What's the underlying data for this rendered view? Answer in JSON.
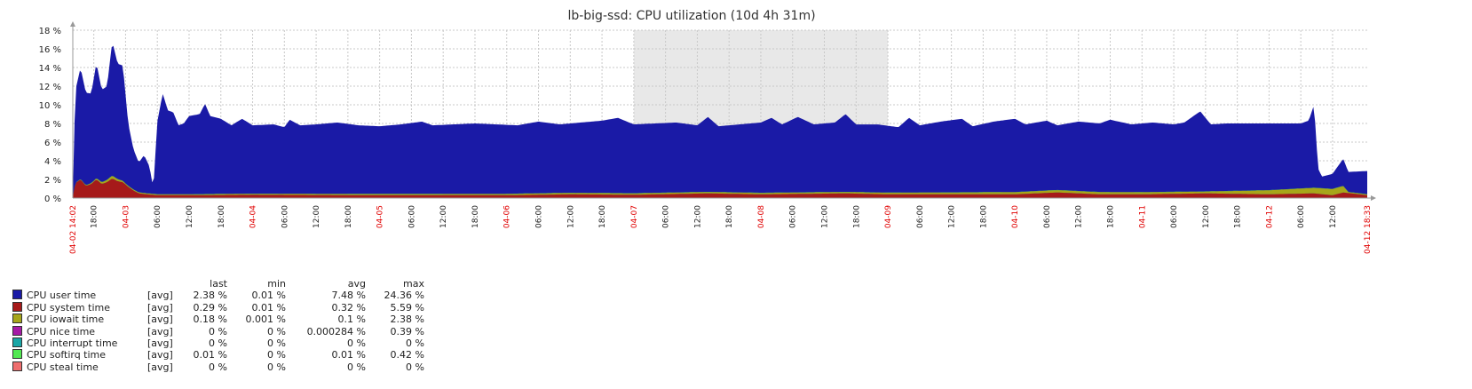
{
  "chart_data": {
    "type": "area",
    "title": "lb-big-ssd: CPU utilization (10d 4h 31m)",
    "ylim": [
      0,
      18
    ],
    "y_ticks": [
      "0 %",
      "2 %",
      "4 %",
      "6 %",
      "8 %",
      "10 %",
      "12 %",
      "14 %",
      "16 %",
      "18 %"
    ],
    "x_range": [
      "04-02 14:02",
      "04-12 18:33"
    ],
    "x_start_label": "04-02 14:02",
    "x_end_label": "04-12 18:33",
    "x_ticks": [
      {
        "t": "04-02 18:00",
        "label": "18:00",
        "day": false
      },
      {
        "t": "04-03 00:00",
        "label": "04-03",
        "day": true
      },
      {
        "t": "04-03 06:00",
        "label": "06:00",
        "day": false
      },
      {
        "t": "04-03 12:00",
        "label": "12:00",
        "day": false
      },
      {
        "t": "04-03 18:00",
        "label": "18:00",
        "day": false
      },
      {
        "t": "04-04 00:00",
        "label": "04-04",
        "day": true
      },
      {
        "t": "04-04 06:00",
        "label": "06:00",
        "day": false
      },
      {
        "t": "04-04 12:00",
        "label": "12:00",
        "day": false
      },
      {
        "t": "04-04 18:00",
        "label": "18:00",
        "day": false
      },
      {
        "t": "04-05 00:00",
        "label": "04-05",
        "day": true
      },
      {
        "t": "04-05 06:00",
        "label": "06:00",
        "day": false
      },
      {
        "t": "04-05 12:00",
        "label": "12:00",
        "day": false
      },
      {
        "t": "04-05 18:00",
        "label": "18:00",
        "day": false
      },
      {
        "t": "04-06 00:00",
        "label": "04-06",
        "day": true
      },
      {
        "t": "04-06 06:00",
        "label": "06:00",
        "day": false
      },
      {
        "t": "04-06 12:00",
        "label": "12:00",
        "day": false
      },
      {
        "t": "04-06 18:00",
        "label": "18:00",
        "day": false
      },
      {
        "t": "04-07 00:00",
        "label": "04-07",
        "day": true
      },
      {
        "t": "04-07 06:00",
        "label": "06:00",
        "day": false
      },
      {
        "t": "04-07 12:00",
        "label": "12:00",
        "day": false
      },
      {
        "t": "04-07 18:00",
        "label": "18:00",
        "day": false
      },
      {
        "t": "04-08 00:00",
        "label": "04-08",
        "day": true
      },
      {
        "t": "04-08 06:00",
        "label": "06:00",
        "day": false
      },
      {
        "t": "04-08 12:00",
        "label": "12:00",
        "day": false
      },
      {
        "t": "04-08 18:00",
        "label": "18:00",
        "day": false
      },
      {
        "t": "04-09 00:00",
        "label": "04-09",
        "day": true
      },
      {
        "t": "04-09 06:00",
        "label": "06:00",
        "day": false
      },
      {
        "t": "04-09 12:00",
        "label": "12:00",
        "day": false
      },
      {
        "t": "04-09 18:00",
        "label": "18:00",
        "day": false
      },
      {
        "t": "04-10 00:00",
        "label": "04-10",
        "day": true
      },
      {
        "t": "04-10 06:00",
        "label": "06:00",
        "day": false
      },
      {
        "t": "04-10 12:00",
        "label": "12:00",
        "day": false
      },
      {
        "t": "04-10 18:00",
        "label": "18:00",
        "day": false
      },
      {
        "t": "04-11 00:00",
        "label": "04-11",
        "day": true
      },
      {
        "t": "04-11 06:00",
        "label": "06:00",
        "day": false
      },
      {
        "t": "04-11 12:00",
        "label": "12:00",
        "day": false
      },
      {
        "t": "04-11 18:00",
        "label": "18:00",
        "day": false
      },
      {
        "t": "04-12 00:00",
        "label": "04-12",
        "day": true
      },
      {
        "t": "04-12 06:00",
        "label": "06:00",
        "day": false
      },
      {
        "t": "04-12 12:00",
        "label": "12:00",
        "day": false
      }
    ],
    "shaded_period": {
      "from": "04-07 00:00",
      "to": "04-09 00:00",
      "color": "#e8e8e8"
    },
    "series": [
      {
        "name": "CPU user time",
        "color": "#1a1aa6",
        "points": [
          [
            "04-02 14:02",
            0.2
          ],
          [
            "04-02 14:30",
            11.5
          ],
          [
            "04-02 15:30",
            14.0
          ],
          [
            "04-02 16:30",
            11.3
          ],
          [
            "04-02 17:30",
            11.2
          ],
          [
            "04-02 18:30",
            14.5
          ],
          [
            "04-02 19:30",
            11.6
          ],
          [
            "04-02 20:30",
            12.0
          ],
          [
            "04-02 21:30",
            16.8
          ],
          [
            "04-02 22:30",
            14.4
          ],
          [
            "04-02 23:30",
            14.2
          ],
          [
            "04-03 00:30",
            8.0
          ],
          [
            "04-03 01:30",
            5.2
          ],
          [
            "04-03 02:30",
            3.8
          ],
          [
            "04-03 03:30",
            4.6
          ],
          [
            "04-03 04:30",
            3.4
          ],
          [
            "04-03 05:15",
            1.0
          ],
          [
            "04-03 06:00",
            8.2
          ],
          [
            "04-03 07:00",
            11.2
          ],
          [
            "04-03 08:00",
            9.4
          ],
          [
            "04-03 09:00",
            9.2
          ],
          [
            "04-03 10:00",
            7.8
          ],
          [
            "04-03 11:00",
            8.0
          ],
          [
            "04-03 12:00",
            8.8
          ],
          [
            "04-03 14:00",
            9.0
          ],
          [
            "04-03 15:00",
            10.1
          ],
          [
            "04-03 16:00",
            8.8
          ],
          [
            "04-03 18:00",
            8.5
          ],
          [
            "04-03 20:00",
            7.8
          ],
          [
            "04-03 22:00",
            8.5
          ],
          [
            "04-04 00:00",
            7.8
          ],
          [
            "04-04 04:00",
            7.9
          ],
          [
            "04-04 06:00",
            7.6
          ],
          [
            "04-04 07:00",
            8.4
          ],
          [
            "04-04 09:00",
            7.8
          ],
          [
            "04-04 12:00",
            7.9
          ],
          [
            "04-04 16:00",
            8.1
          ],
          [
            "04-04 20:00",
            7.8
          ],
          [
            "04-05 00:00",
            7.7
          ],
          [
            "04-05 04:00",
            7.9
          ],
          [
            "04-05 08:00",
            8.2
          ],
          [
            "04-05 10:00",
            7.8
          ],
          [
            "04-05 14:00",
            7.9
          ],
          [
            "04-05 18:00",
            8.0
          ],
          [
            "04-05 22:00",
            7.9
          ],
          [
            "04-06 02:00",
            7.8
          ],
          [
            "04-06 06:00",
            8.2
          ],
          [
            "04-06 10:00",
            7.9
          ],
          [
            "04-06 14:00",
            8.1
          ],
          [
            "04-06 18:00",
            8.3
          ],
          [
            "04-06 21:00",
            8.6
          ],
          [
            "04-07 00:00",
            7.9
          ],
          [
            "04-07 04:00",
            8.0
          ],
          [
            "04-07 08:00",
            8.1
          ],
          [
            "04-07 12:00",
            7.8
          ],
          [
            "04-07 14:00",
            8.7
          ],
          [
            "04-07 16:00",
            7.7
          ],
          [
            "04-07 20:00",
            7.9
          ],
          [
            "04-08 00:00",
            8.1
          ],
          [
            "04-08 02:00",
            8.6
          ],
          [
            "04-08 04:00",
            7.9
          ],
          [
            "04-08 07:00",
            8.7
          ],
          [
            "04-08 10:00",
            7.9
          ],
          [
            "04-08 14:00",
            8.1
          ],
          [
            "04-08 16:00",
            9.0
          ],
          [
            "04-08 18:00",
            7.9
          ],
          [
            "04-08 22:00",
            7.9
          ],
          [
            "04-09 02:00",
            7.6
          ],
          [
            "04-09 04:00",
            8.6
          ],
          [
            "04-09 06:00",
            7.8
          ],
          [
            "04-09 10:00",
            8.2
          ],
          [
            "04-09 14:00",
            8.5
          ],
          [
            "04-09 16:00",
            7.7
          ],
          [
            "04-09 20:00",
            8.2
          ],
          [
            "04-10 00:00",
            8.5
          ],
          [
            "04-10 02:00",
            7.9
          ],
          [
            "04-10 06:00",
            8.3
          ],
          [
            "04-10 08:00",
            7.8
          ],
          [
            "04-10 12:00",
            8.2
          ],
          [
            "04-10 16:00",
            8.0
          ],
          [
            "04-10 18:00",
            8.4
          ],
          [
            "04-10 22:00",
            7.9
          ],
          [
            "04-11 02:00",
            8.1
          ],
          [
            "04-11 06:00",
            7.9
          ],
          [
            "04-11 08:00",
            8.1
          ],
          [
            "04-11 11:00",
            9.3
          ],
          [
            "04-11 13:00",
            7.9
          ],
          [
            "04-11 16:00",
            8.0
          ],
          [
            "04-11 20:00",
            8.0
          ],
          [
            "04-12 00:00",
            8.0
          ],
          [
            "04-12 04:00",
            8.0
          ],
          [
            "04-12 06:00",
            8.0
          ],
          [
            "04-12 07:30",
            8.3
          ],
          [
            "04-12 08:30",
            10.0
          ],
          [
            "04-12 09:15",
            3.2
          ],
          [
            "04-12 10:00",
            2.3
          ],
          [
            "04-12 12:00",
            2.6
          ],
          [
            "04-12 14:00",
            4.2
          ],
          [
            "04-12 15:00",
            2.8
          ],
          [
            "04-12 18:33",
            2.9
          ]
        ]
      },
      {
        "name": "CPU system time",
        "color": "#a61a1a",
        "points": [
          [
            "04-02 14:02",
            0.1
          ],
          [
            "04-02 14:30",
            1.6
          ],
          [
            "04-02 15:30",
            2.0
          ],
          [
            "04-02 16:30",
            1.3
          ],
          [
            "04-02 17:30",
            1.5
          ],
          [
            "04-02 18:30",
            2.0
          ],
          [
            "04-02 19:30",
            1.5
          ],
          [
            "04-02 20:30",
            1.7
          ],
          [
            "04-02 21:30",
            2.1
          ],
          [
            "04-02 22:30",
            1.8
          ],
          [
            "04-02 23:30",
            1.7
          ],
          [
            "04-03 00:30",
            1.2
          ],
          [
            "04-03 01:30",
            0.8
          ],
          [
            "04-03 02:30",
            0.5
          ],
          [
            "04-03 04:00",
            0.4
          ],
          [
            "04-03 06:00",
            0.3
          ],
          [
            "04-03 12:00",
            0.3
          ],
          [
            "04-04 00:00",
            0.35
          ],
          [
            "04-05 00:00",
            0.3
          ],
          [
            "04-06 00:00",
            0.3
          ],
          [
            "04-06 12:00",
            0.4
          ],
          [
            "04-07 00:00",
            0.35
          ],
          [
            "04-07 14:00",
            0.5
          ],
          [
            "04-08 00:00",
            0.4
          ],
          [
            "04-08 16:00",
            0.5
          ],
          [
            "04-09 00:00",
            0.4
          ],
          [
            "04-10 00:00",
            0.4
          ],
          [
            "04-10 08:00",
            0.6
          ],
          [
            "04-10 16:00",
            0.4
          ],
          [
            "04-11 00:00",
            0.4
          ],
          [
            "04-11 12:00",
            0.5
          ],
          [
            "04-12 00:00",
            0.4
          ],
          [
            "04-12 08:30",
            0.5
          ],
          [
            "04-12 12:00",
            0.3
          ],
          [
            "04-12 14:00",
            0.6
          ],
          [
            "04-12 18:33",
            0.3
          ]
        ]
      },
      {
        "name": "CPU iowait time",
        "color": "#a6a61a",
        "points": [
          [
            "04-02 14:02",
            0.0
          ],
          [
            "04-02 18:00",
            0.1
          ],
          [
            "04-02 21:30",
            0.3
          ],
          [
            "04-03 00:00",
            0.1
          ],
          [
            "04-03 12:00",
            0.1
          ],
          [
            "04-06 12:00",
            0.15
          ],
          [
            "04-08 16:00",
            0.15
          ],
          [
            "04-10 08:00",
            0.25
          ],
          [
            "04-11 12:00",
            0.2
          ],
          [
            "04-12 14:00",
            0.7
          ],
          [
            "04-12 15:00",
            0.1
          ],
          [
            "04-12 18:33",
            0.1
          ]
        ]
      },
      {
        "name": "CPU nice time",
        "color": "#a61aa6",
        "points": []
      },
      {
        "name": "CPU interrupt time",
        "color": "#1aa6a6",
        "points": []
      },
      {
        "name": "CPU softirq time",
        "color": "#52e852",
        "points": [
          [
            "04-02 14:02",
            0.02
          ],
          [
            "04-12 18:33",
            0.02
          ]
        ]
      },
      {
        "name": "CPU steal time",
        "color": "#ef6e6e",
        "points": []
      }
    ]
  },
  "legend": {
    "headers": {
      "last": "last",
      "min": "min",
      "avg": "avg",
      "max": "max"
    },
    "rows": [
      {
        "name": "CPU user time",
        "fn": "[avg]",
        "last": "2.38 %",
        "min": "0.01 %",
        "avg": "7.48 %",
        "max": "24.36 %",
        "color": "#1a1aa6"
      },
      {
        "name": "CPU system time",
        "fn": "[avg]",
        "last": "0.29 %",
        "min": "0.01 %",
        "avg": "0.32 %",
        "max": "5.59 %",
        "color": "#a61a1a"
      },
      {
        "name": "CPU iowait time",
        "fn": "[avg]",
        "last": "0.18 %",
        "min": "0.001 %",
        "avg": "0.1 %",
        "max": "2.38 %",
        "color": "#a6a61a"
      },
      {
        "name": "CPU nice time",
        "fn": "[avg]",
        "last": "0 %",
        "min": "0 %",
        "avg": "0.000284 %",
        "max": "0.39 %",
        "color": "#a61aa6"
      },
      {
        "name": "CPU interrupt time",
        "fn": "[avg]",
        "last": "0 %",
        "min": "0 %",
        "avg": "0 %",
        "max": "0 %",
        "color": "#1aa6a6"
      },
      {
        "name": "CPU softirq time",
        "fn": "[avg]",
        "last": "0.01 %",
        "min": "0 %",
        "avg": "0.01 %",
        "max": "0.42 %",
        "color": "#52e852"
      },
      {
        "name": "CPU steal time",
        "fn": "[avg]",
        "last": "0 %",
        "min": "0 %",
        "avg": "0 %",
        "max": "0 %",
        "color": "#ef6e6e"
      }
    ]
  }
}
